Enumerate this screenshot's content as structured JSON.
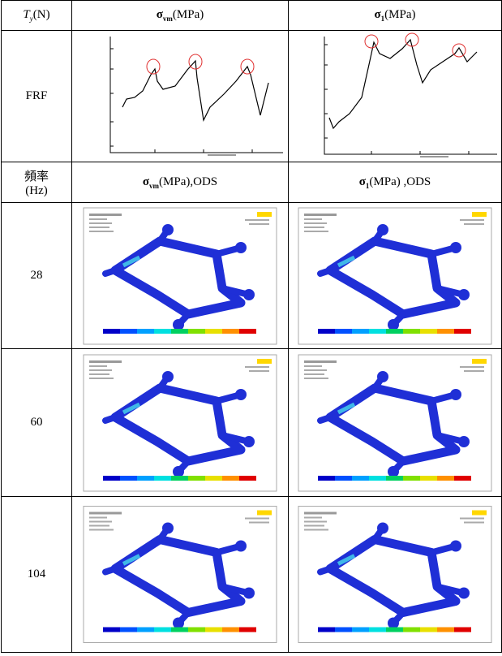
{
  "header_row": [
    {
      "symbol": "T",
      "subscript": "y",
      "suffix": "(N)"
    },
    {
      "symbol": "σ",
      "subscript": "vm",
      "suffix": "(MPa)"
    },
    {
      "symbol": "σ",
      "subscript": "1",
      "suffix": "(MPa)"
    }
  ],
  "frf_row_label": "FRF",
  "ods_header_row": [
    {
      "lines": [
        "頻率",
        "(Hz)"
      ]
    },
    {
      "symbol": "σ",
      "subscript": "vm",
      "suffix": "(MPa),ODS"
    },
    {
      "symbol": "σ",
      "subscript": "1",
      "suffix": "(MPa) ,ODS"
    }
  ],
  "frequency_rows": [
    "28",
    "60",
    "104"
  ]
}
